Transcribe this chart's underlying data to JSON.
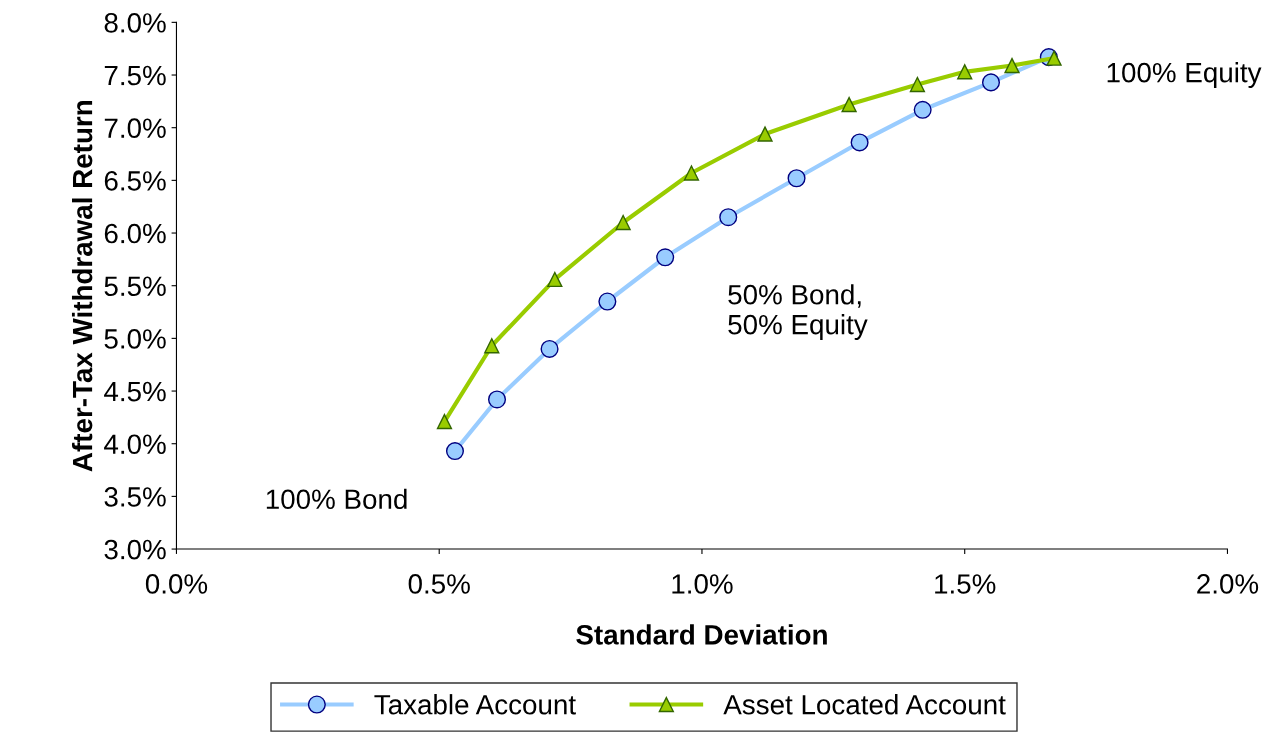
{
  "chart_data": {
    "type": "line",
    "xlabel": "Standard Deviation",
    "ylabel": "After-Tax Withdrawal Return",
    "xlim": [
      0,
      2.0
    ],
    "xticks": [
      {
        "value": 0,
        "label": "0.0%"
      },
      {
        "value": 0.5,
        "label": "0.5%"
      },
      {
        "value": 1.0,
        "label": "1.0%"
      },
      {
        "value": 1.5,
        "label": "1.5%"
      },
      {
        "value": 2.0,
        "label": "2.0%"
      }
    ],
    "ylim": [
      3.0,
      8.0
    ],
    "yticks": [
      {
        "value": 3.0,
        "label": "3.0%"
      },
      {
        "value": 3.5,
        "label": "3.5%"
      },
      {
        "value": 4.0,
        "label": "4.0%"
      },
      {
        "value": 4.5,
        "label": "4.5%"
      },
      {
        "value": 5.0,
        "label": "5.0%"
      },
      {
        "value": 5.5,
        "label": "5.5%"
      },
      {
        "value": 6.0,
        "label": "6.0%"
      },
      {
        "value": 6.5,
        "label": "6.5%"
      },
      {
        "value": 7.0,
        "label": "7.0%"
      },
      {
        "value": 7.5,
        "label": "7.5%"
      },
      {
        "value": 8.0,
        "label": "8.0%"
      }
    ],
    "grid": false,
    "legend": "bottom",
    "series": [
      {
        "name": "Taxable Account",
        "color": "#99ccff",
        "marker": "circle",
        "x": [
          0.53,
          0.61,
          0.71,
          0.82,
          0.93,
          1.05,
          1.18,
          1.3,
          1.42,
          1.55,
          1.66
        ],
        "values": [
          3.93,
          4.42,
          4.9,
          5.35,
          5.77,
          6.15,
          6.52,
          6.86,
          7.17,
          7.43,
          7.67
        ]
      },
      {
        "name": "Asset Located Account",
        "color": "#99cc00",
        "marker": "triangle",
        "x": [
          0.51,
          0.6,
          0.72,
          0.85,
          0.98,
          1.12,
          1.28,
          1.41,
          1.5,
          1.59,
          1.67
        ],
        "values": [
          4.21,
          4.93,
          5.56,
          6.1,
          6.57,
          6.94,
          7.22,
          7.41,
          7.53,
          7.59,
          7.66
        ]
      }
    ],
    "annotations": [
      "100% Equity",
      "50% Bond,\n50% Equity",
      "100% Bond"
    ]
  }
}
